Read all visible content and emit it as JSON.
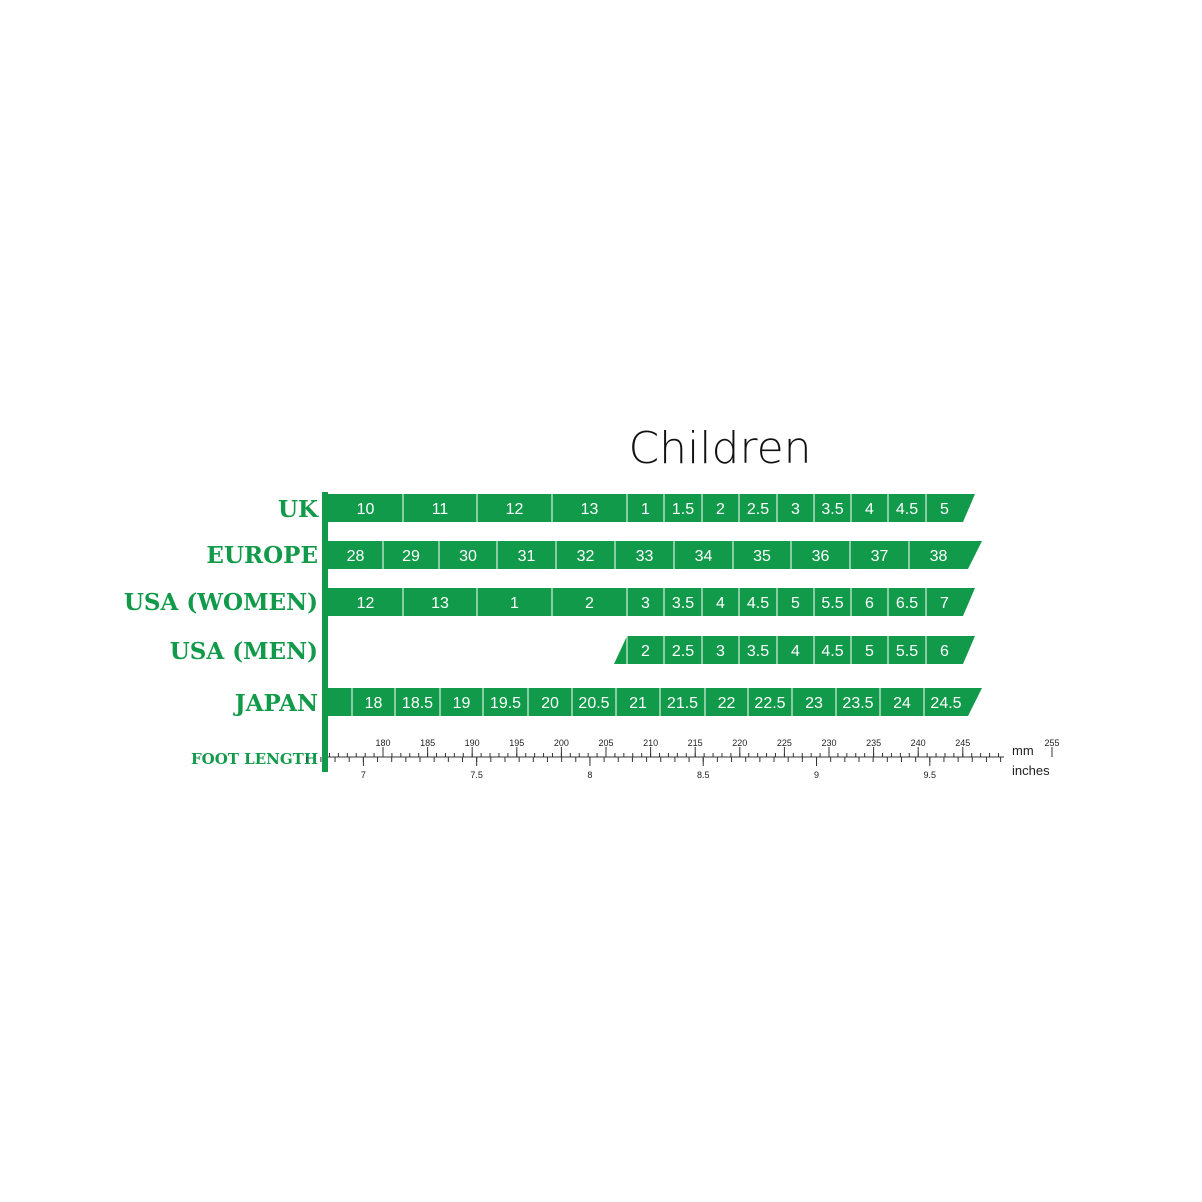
{
  "title": "Children",
  "rows": [
    {
      "label": "UK",
      "sizes": [
        "10",
        "11",
        "12",
        "13",
        "1",
        "1.5",
        "2",
        "2.5",
        "3",
        "3.5",
        "4",
        "4.5",
        "5"
      ]
    },
    {
      "label": "EUROPE",
      "sizes": [
        "28",
        "29",
        "30",
        "31",
        "32",
        "33",
        "34",
        "35",
        "36",
        "37",
        "38"
      ]
    },
    {
      "label": "USA (WOMEN)",
      "sizes": [
        "12",
        "13",
        "1",
        "2",
        "3",
        "3.5",
        "4",
        "4.5",
        "5",
        "5.5",
        "6",
        "6.5",
        "7"
      ]
    },
    {
      "label": "USA (MEN)",
      "sizes": [
        "2",
        "2.5",
        "3",
        "3.5",
        "4",
        "4.5",
        "5",
        "5.5",
        "6"
      ]
    },
    {
      "label": "JAPAN",
      "sizes": [
        "18",
        "18.5",
        "19",
        "19.5",
        "20",
        "20.5",
        "21",
        "21.5",
        "22",
        "22.5",
        "23",
        "23.5",
        "24",
        "24.5"
      ]
    }
  ],
  "ruler": {
    "label": "FOOT LENGTH",
    "mm_unit": "mm",
    "inch_unit": "inches",
    "mm_ticks": [
      180,
      185,
      190,
      195,
      200,
      205,
      210,
      215,
      220,
      225,
      230,
      235,
      240,
      245,
      255
    ],
    "inch_ticks": [
      7,
      7.5,
      8,
      8.5,
      9,
      9.5
    ]
  }
}
